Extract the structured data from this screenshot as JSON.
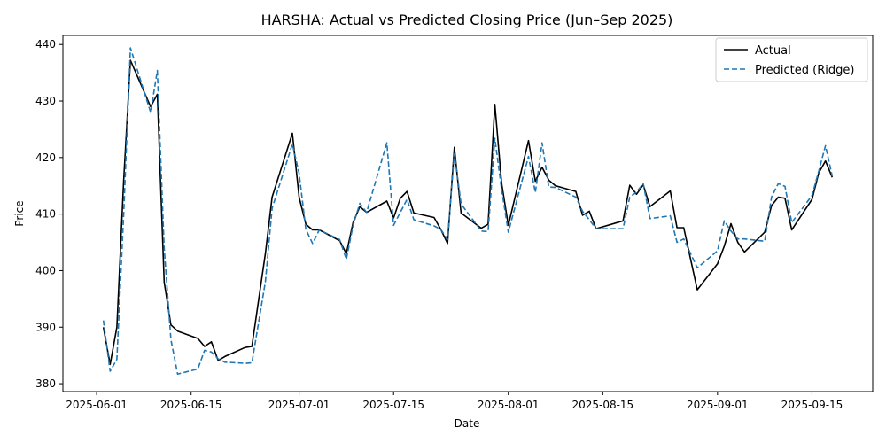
{
  "chart_data": {
    "type": "line",
    "title": "HARSHA: Actual vs Predicted Closing Price (Jun–Sep 2025)",
    "xlabel": "Date",
    "ylabel": "Price",
    "xlim": [
      "2025-05-27",
      "2025-09-24"
    ],
    "ylim": [
      378.6,
      441.6
    ],
    "x_ticks": [
      "2025-06-01",
      "2025-06-15",
      "2025-07-01",
      "2025-07-15",
      "2025-08-01",
      "2025-08-15",
      "2025-09-01",
      "2025-09-15"
    ],
    "y_ticks": [
      380,
      390,
      400,
      410,
      420,
      430,
      440
    ],
    "grid": false,
    "legend_position": "top-right",
    "series": [
      {
        "name": "Actual",
        "color": "#000000",
        "style": "solid",
        "points": [
          [
            "2025-06-02",
            390.0
          ],
          [
            "2025-06-03",
            383.4
          ],
          [
            "2025-06-04",
            390.0
          ],
          [
            "2025-06-05",
            416.0
          ],
          [
            "2025-06-06",
            437.2
          ],
          [
            "2025-06-09",
            429.0
          ],
          [
            "2025-06-10",
            431.2
          ],
          [
            "2025-06-11",
            398.0
          ],
          [
            "2025-06-12",
            390.4
          ],
          [
            "2025-06-13",
            389.3
          ],
          [
            "2025-06-16",
            388.0
          ],
          [
            "2025-06-17",
            386.6
          ],
          [
            "2025-06-18",
            387.4
          ],
          [
            "2025-06-19",
            384.1
          ],
          [
            "2025-06-20",
            384.8
          ],
          [
            "2025-06-23",
            386.4
          ],
          [
            "2025-06-24",
            386.6
          ],
          [
            "2025-06-26",
            403.0
          ],
          [
            "2025-06-27",
            413.0
          ],
          [
            "2025-06-30",
            424.3
          ],
          [
            "2025-07-01",
            413.0
          ],
          [
            "2025-07-02",
            408.2
          ],
          [
            "2025-07-03",
            407.2
          ],
          [
            "2025-07-04",
            407.2
          ],
          [
            "2025-07-07",
            405.3
          ],
          [
            "2025-07-08",
            403.0
          ],
          [
            "2025-07-09",
            408.5
          ],
          [
            "2025-07-10",
            411.3
          ],
          [
            "2025-07-11",
            410.3
          ],
          [
            "2025-07-14",
            412.3
          ],
          [
            "2025-07-15",
            409.3
          ],
          [
            "2025-07-16",
            412.8
          ],
          [
            "2025-07-17",
            414.0
          ],
          [
            "2025-07-18",
            410.2
          ],
          [
            "2025-07-21",
            409.4
          ],
          [
            "2025-07-22",
            407.3
          ],
          [
            "2025-07-23",
            404.8
          ],
          [
            "2025-07-24",
            421.8
          ],
          [
            "2025-07-25",
            410.2
          ],
          [
            "2025-07-28",
            407.5
          ],
          [
            "2025-07-29",
            408.2
          ],
          [
            "2025-07-30",
            429.4
          ],
          [
            "2025-07-31",
            415.5
          ],
          [
            "2025-08-01",
            408.0
          ],
          [
            "2025-08-04",
            423.0
          ],
          [
            "2025-08-05",
            415.8
          ],
          [
            "2025-08-06",
            418.3
          ],
          [
            "2025-08-07",
            416.0
          ],
          [
            "2025-08-08",
            415.0
          ],
          [
            "2025-08-11",
            414.0
          ],
          [
            "2025-08-12",
            409.8
          ],
          [
            "2025-08-13",
            410.5
          ],
          [
            "2025-08-14",
            407.4
          ],
          [
            "2025-08-18",
            408.8
          ],
          [
            "2025-08-19",
            415.1
          ],
          [
            "2025-08-20",
            413.5
          ],
          [
            "2025-08-21",
            415.2
          ],
          [
            "2025-08-22",
            411.3
          ],
          [
            "2025-08-25",
            414.1
          ],
          [
            "2025-08-26",
            407.6
          ],
          [
            "2025-08-27",
            407.6
          ],
          [
            "2025-08-29",
            396.6
          ],
          [
            "2025-09-01",
            401.2
          ],
          [
            "2025-09-02",
            404.3
          ],
          [
            "2025-09-03",
            408.3
          ],
          [
            "2025-09-04",
            405.0
          ],
          [
            "2025-09-05",
            403.3
          ],
          [
            "2025-09-08",
            406.8
          ],
          [
            "2025-09-09",
            411.5
          ],
          [
            "2025-09-10",
            413.0
          ],
          [
            "2025-09-11",
            412.8
          ],
          [
            "2025-09-12",
            407.2
          ],
          [
            "2025-09-15",
            412.6
          ],
          [
            "2025-09-16",
            417.3
          ],
          [
            "2025-09-17",
            419.4
          ],
          [
            "2025-09-18",
            416.5
          ]
        ]
      },
      {
        "name": "Predicted (Ridge)",
        "color": "#1f77b4",
        "style": "dashed",
        "points": [
          [
            "2025-06-02",
            391.2
          ],
          [
            "2025-06-03",
            382.2
          ],
          [
            "2025-06-04",
            384.3
          ],
          [
            "2025-06-05",
            410.0
          ],
          [
            "2025-06-06",
            439.4
          ],
          [
            "2025-06-09",
            428.0
          ],
          [
            "2025-06-10",
            435.4
          ],
          [
            "2025-06-11",
            404.0
          ],
          [
            "2025-06-12",
            387.8
          ],
          [
            "2025-06-13",
            381.7
          ],
          [
            "2025-06-16",
            382.6
          ],
          [
            "2025-06-17",
            385.9
          ],
          [
            "2025-06-18",
            385.6
          ],
          [
            "2025-06-19",
            384.4
          ],
          [
            "2025-06-20",
            383.8
          ],
          [
            "2025-06-23",
            383.6
          ],
          [
            "2025-06-24",
            383.7
          ],
          [
            "2025-06-26",
            398.0
          ],
          [
            "2025-06-27",
            411.0
          ],
          [
            "2025-06-30",
            422.4
          ],
          [
            "2025-07-01",
            417.2
          ],
          [
            "2025-07-02",
            407.3
          ],
          [
            "2025-07-03",
            404.8
          ],
          [
            "2025-07-04",
            407.2
          ],
          [
            "2025-07-07",
            405.5
          ],
          [
            "2025-07-08",
            402.0
          ],
          [
            "2025-07-09",
            408.0
          ],
          [
            "2025-07-10",
            411.9
          ],
          [
            "2025-07-11",
            410.3
          ],
          [
            "2025-07-14",
            422.6
          ],
          [
            "2025-07-15",
            408.0
          ],
          [
            "2025-07-16",
            410.3
          ],
          [
            "2025-07-17",
            412.6
          ],
          [
            "2025-07-18",
            409.0
          ],
          [
            "2025-07-21",
            407.9
          ],
          [
            "2025-07-22",
            407.3
          ],
          [
            "2025-07-23",
            405.5
          ],
          [
            "2025-07-24",
            420.7
          ],
          [
            "2025-07-25",
            411.8
          ],
          [
            "2025-07-28",
            407.0
          ],
          [
            "2025-07-29",
            406.9
          ],
          [
            "2025-07-30",
            423.4
          ],
          [
            "2025-07-31",
            414.4
          ],
          [
            "2025-08-01",
            406.8
          ],
          [
            "2025-08-04",
            420.2
          ],
          [
            "2025-08-05",
            413.8
          ],
          [
            "2025-08-06",
            422.6
          ],
          [
            "2025-08-07",
            414.8
          ],
          [
            "2025-08-08",
            414.7
          ],
          [
            "2025-08-11",
            413.0
          ],
          [
            "2025-08-12",
            410.5
          ],
          [
            "2025-08-13",
            409.0
          ],
          [
            "2025-08-14",
            407.4
          ],
          [
            "2025-08-18",
            407.4
          ],
          [
            "2025-08-19",
            413.0
          ],
          [
            "2025-08-20",
            413.9
          ],
          [
            "2025-08-21",
            415.4
          ],
          [
            "2025-08-22",
            409.2
          ],
          [
            "2025-08-25",
            409.7
          ],
          [
            "2025-08-26",
            405.0
          ],
          [
            "2025-08-27",
            405.6
          ],
          [
            "2025-08-29",
            400.5
          ],
          [
            "2025-09-01",
            403.5
          ],
          [
            "2025-09-02",
            408.8
          ],
          [
            "2025-09-03",
            407.0
          ],
          [
            "2025-09-04",
            405.6
          ],
          [
            "2025-09-05",
            405.6
          ],
          [
            "2025-09-08",
            405.2
          ],
          [
            "2025-09-09",
            413.0
          ],
          [
            "2025-09-10",
            415.4
          ],
          [
            "2025-09-11",
            414.9
          ],
          [
            "2025-09-12",
            408.5
          ],
          [
            "2025-09-15",
            413.3
          ],
          [
            "2025-09-16",
            417.6
          ],
          [
            "2025-09-17",
            422.1
          ],
          [
            "2025-09-18",
            416.7
          ]
        ]
      }
    ]
  }
}
